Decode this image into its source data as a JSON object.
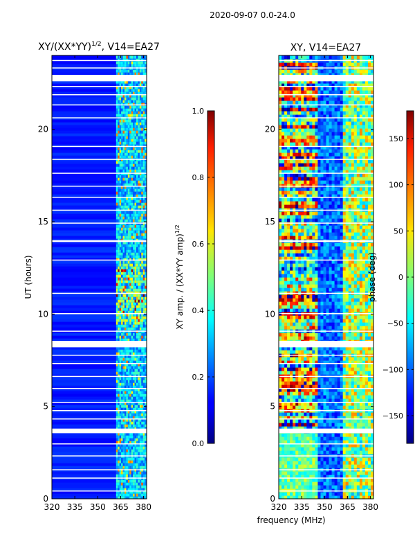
{
  "figure": {
    "suptitle": "2020-09-07 0.0-24.0",
    "xlabel": "frequency (MHz)"
  },
  "chart_data": [
    {
      "type": "heatmap",
      "title": "XY/(XX*YY)",
      "title_sup": "1/2",
      "title_suffix": ", V14=EA27",
      "ylabel": "UT (hours)",
      "xlim": [
        320,
        382
      ],
      "ylim": [
        0,
        24
      ],
      "xticks": [
        "320",
        "335",
        "350",
        "365",
        "380"
      ],
      "xtick_values": [
        320,
        335,
        350,
        365,
        380
      ],
      "yticks": [
        "0",
        "5",
        "10",
        "15",
        "20"
      ],
      "ytick_values": [
        0,
        5,
        10,
        15,
        20
      ],
      "colorbar": {
        "label": "XY amp. / (XX*YY amp)",
        "label_sup": "1/2",
        "range": [
          0.0,
          1.0
        ],
        "ticks": [
          "0.0",
          "0.2",
          "0.4",
          "0.6",
          "0.8",
          "1.0"
        ],
        "tick_values": [
          0.0,
          0.2,
          0.4,
          0.6,
          0.8,
          1.0
        ]
      }
    },
    {
      "type": "heatmap",
      "title": "XY, V14=EA27",
      "xlim": [
        320,
        382
      ],
      "ylim": [
        0,
        24
      ],
      "xticks": [
        "320",
        "335",
        "350",
        "365",
        "380"
      ],
      "xtick_values": [
        320,
        335,
        350,
        365,
        380
      ],
      "yticks": [
        "0",
        "5",
        "10",
        "15",
        "20"
      ],
      "ytick_values": [
        0,
        5,
        10,
        15,
        20
      ],
      "colorbar": {
        "label": "phase (deg)",
        "range": [
          -180,
          180
        ],
        "ticks": [
          "−150",
          "−100",
          "−50",
          "0",
          "50",
          "100",
          "150"
        ],
        "tick_values": [
          -150,
          -100,
          -50,
          0,
          50,
          100,
          150
        ]
      }
    }
  ]
}
